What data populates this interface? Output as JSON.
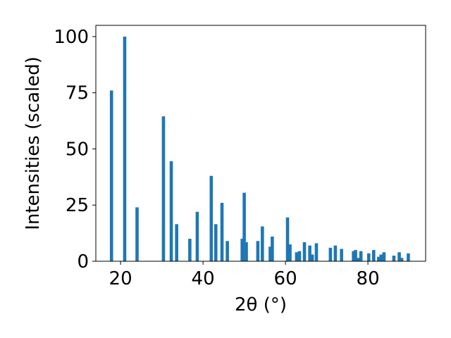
{
  "chart_data": {
    "type": "bar",
    "xlabel": "2θ (°)",
    "ylabel": "Intensities (scaled)",
    "xlim": [
      14,
      94
    ],
    "ylim": [
      0,
      105
    ],
    "x_ticks": [
      20,
      40,
      60,
      80
    ],
    "y_ticks": [
      0,
      25,
      50,
      75,
      100
    ],
    "grid": false,
    "bar_color": "#1f77b4",
    "series": [
      {
        "x": [
          17.8,
          21.0,
          24.0,
          30.4,
          32.3,
          33.6,
          36.8,
          38.6,
          42.0,
          43.1,
          44.6,
          45.9,
          49.5,
          50.0,
          50.5,
          53.3,
          54.4,
          56.3,
          56.8,
          60.5,
          61.1,
          62.7,
          63.4,
          64.6,
          65.9,
          66.5,
          67.5,
          70.9,
          72.1,
          73.6,
          76.5,
          77.0,
          77.6,
          78.3,
          80.2,
          81.4,
          82.6,
          83.2,
          83.9,
          86.3,
          87.6,
          88.2,
          89.8
        ],
        "values": [
          76,
          100,
          24,
          64.5,
          44.5,
          16.5,
          10,
          22,
          38,
          16.5,
          26,
          9,
          10,
          30.5,
          8.5,
          9,
          15.5,
          6.5,
          11,
          19.5,
          7.5,
          4,
          4.5,
          8.5,
          7,
          3,
          8,
          6,
          7,
          5.5,
          4.5,
          5,
          1.5,
          4.5,
          3.5,
          5,
          2,
          3,
          4,
          2.5,
          4,
          1.5,
          3.5
        ]
      }
    ]
  }
}
